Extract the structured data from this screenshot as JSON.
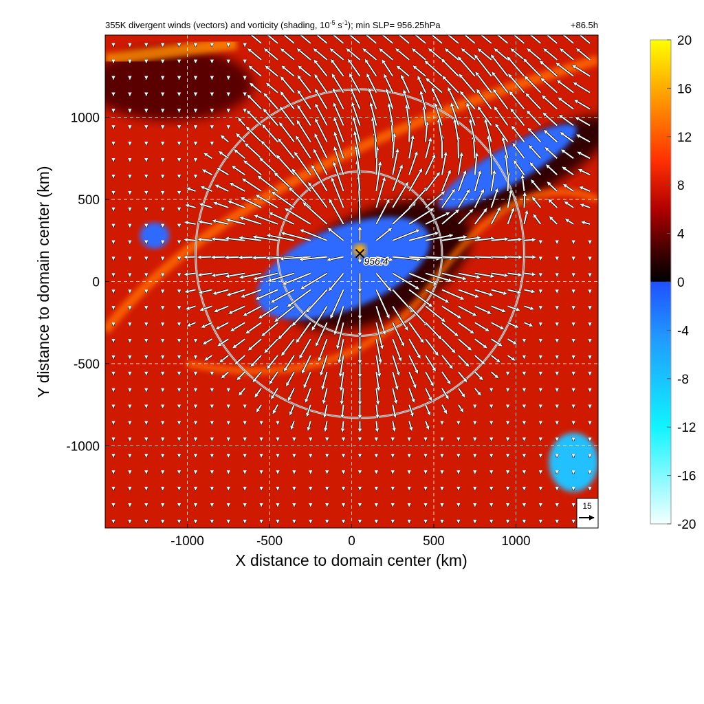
{
  "chart_data": {
    "type": "heatmap",
    "title": "355K divergent winds (vectors) and vorticity (shading, 10",
    "title_exp": "-5",
    "title_mid": " s",
    "title_exp2": "-1",
    "title_end": "); min SLP= 956.25hPa",
    "forecast_hour": "+86.5h",
    "xlabel": "X distance to domain center (km)",
    "ylabel": "Y distance to domain center (km)",
    "xlim": [
      -1500,
      1500
    ],
    "ylim": [
      -1500,
      1500
    ],
    "x_ticks": [
      -1000,
      -500,
      0,
      500,
      1000
    ],
    "y_ticks": [
      1000,
      500,
      0,
      -500,
      -1000
    ],
    "x_tick_labels": [
      "-1000",
      "-500",
      "0",
      "500",
      "1000"
    ],
    "y_tick_labels": [
      "1000",
      "500",
      "0",
      "-500",
      "-1000"
    ],
    "grid": true,
    "colorbar": {
      "ticks": [
        20,
        16,
        12,
        8,
        4,
        0,
        -4,
        -8,
        -12,
        -16,
        -20
      ],
      "tick_labels": [
        "20",
        "16",
        "12",
        "8",
        "4",
        "0",
        "-4",
        "-8",
        "-12",
        "-16",
        "-20"
      ],
      "colors_positive": [
        "#1a0000",
        "#600000",
        "#c00000",
        "#ff2000",
        "#ff7000",
        "#ffb000",
        "#ffff00"
      ],
      "colors_negative": [
        "#2050ff",
        "#20a0ff",
        "#20e0ff",
        "#a0f0ff",
        "#f0ffff"
      ]
    },
    "center_marker": {
      "x": 50,
      "y": 170,
      "label": "956.4"
    },
    "circles_km": [
      500,
      1000
    ],
    "reference_vector": {
      "label": "15",
      "speed": 15
    }
  },
  "colors": {
    "background_field": "#d01a00",
    "negative_vorticity": "#2f6bff",
    "strong_positive": "#ffb000",
    "circle": "#cfcfcf",
    "vector": "#ffffff"
  }
}
